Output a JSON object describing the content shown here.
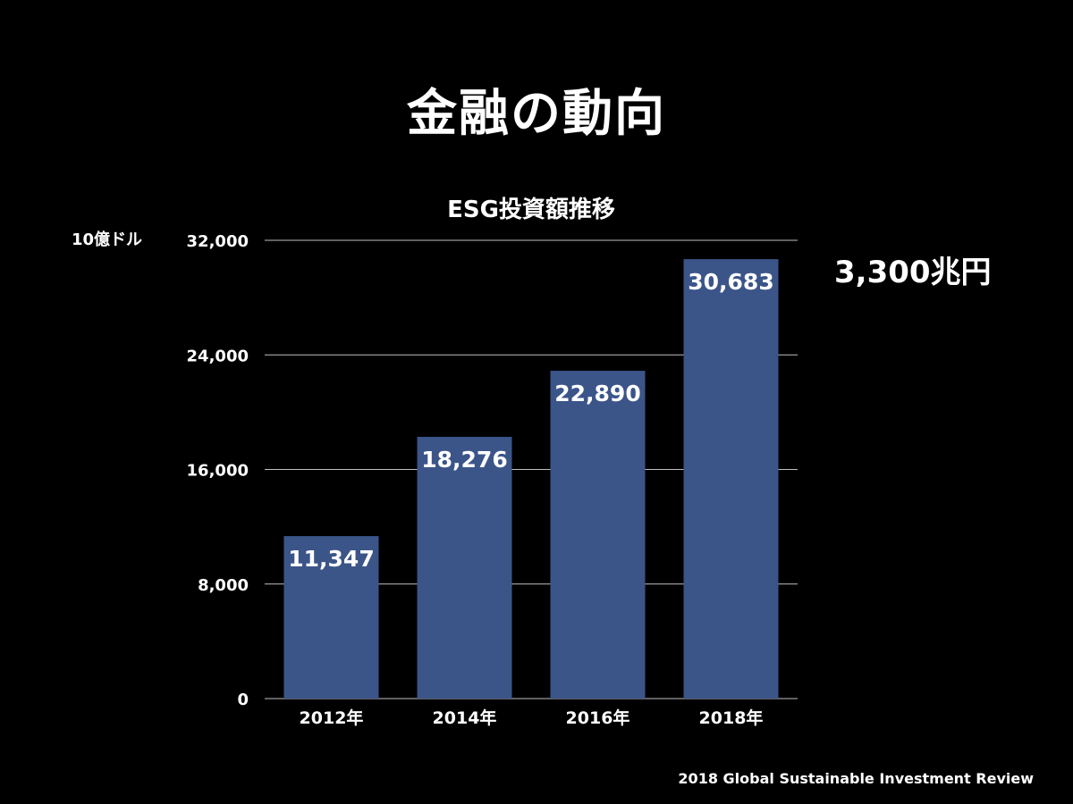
{
  "slide": {
    "title": "金融の動向",
    "callout": "3,300兆円",
    "source": "2018 Global Sustainable Investment Review"
  },
  "chart_data": {
    "type": "bar",
    "title": "ESG投資額推移",
    "ylabel": "10億ドル",
    "xlabel": "",
    "categories": [
      "2012年",
      "2014年",
      "2016年",
      "2018年"
    ],
    "values": [
      11347,
      18276,
      22890,
      30683
    ],
    "value_labels": [
      "11,347",
      "18,276",
      "22,890",
      "30,683"
    ],
    "ylim": [
      0,
      32000
    ],
    "yticks": [
      0,
      8000,
      16000,
      24000,
      32000
    ],
    "ytick_labels": [
      "0",
      "8,000",
      "16,000",
      "24,000",
      "32,000"
    ],
    "grid": true,
    "legend": "none",
    "colors": {
      "bar": "#3b5589",
      "grid": "#bfbfbf",
      "text": "#ffffff",
      "background": "#000000"
    }
  }
}
